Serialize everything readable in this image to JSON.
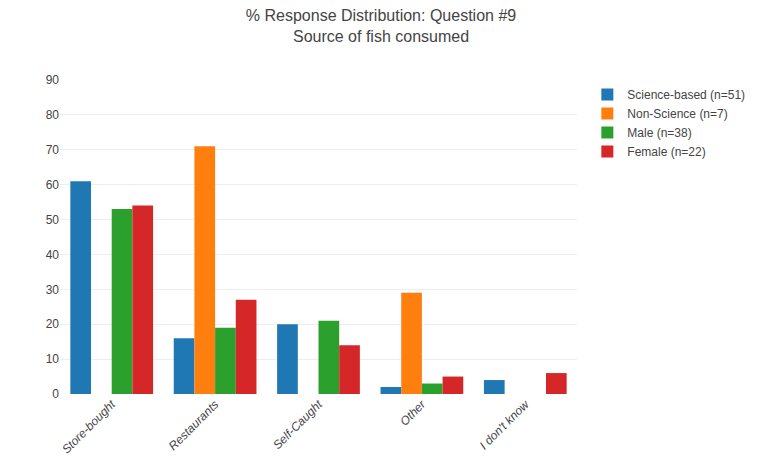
{
  "chart_data": {
    "type": "bar",
    "title": "% Response Distribution: Question #9",
    "subtitle": "Source of fish consumed",
    "categories": [
      "Store-bought",
      "Restaurants",
      "Self-Caught",
      "Other",
      "I don't know"
    ],
    "series": [
      {
        "name": "Science-based (n=51)",
        "values": [
          61,
          16,
          20,
          2,
          4
        ]
      },
      {
        "name": "Non-Science (n=7)",
        "values": [
          0,
          71,
          0,
          29,
          0
        ]
      },
      {
        "name": "Male (n=38)",
        "values": [
          53,
          19,
          21,
          3,
          0
        ]
      },
      {
        "name": "Female (n=22)",
        "values": [
          54,
          27,
          14,
          5,
          6
        ]
      }
    ],
    "ylim": [
      0,
      90
    ],
    "yticks": [
      0,
      10,
      20,
      30,
      40,
      50,
      60,
      70,
      80,
      90
    ],
    "grid": true,
    "legend": "right"
  }
}
